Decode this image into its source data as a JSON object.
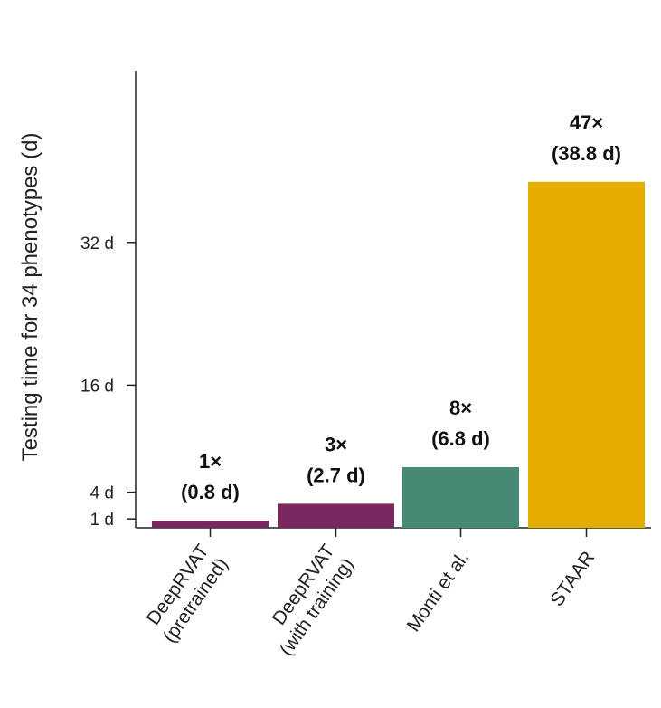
{
  "chart_data": {
    "type": "bar",
    "ylabel": "Testing time for 34 phenotypes (d)",
    "ylim": [
      0,
      45
    ],
    "yticks": [
      {
        "value": 1,
        "label": "1 d"
      },
      {
        "value": 4,
        "label": "4 d"
      },
      {
        "value": 16,
        "label": "16 d"
      },
      {
        "value": 32,
        "label": "32 d"
      }
    ],
    "categories": [
      {
        "lines": [
          "DeepRVAT",
          "(pretrained)"
        ]
      },
      {
        "lines": [
          "DeepRVAT",
          "(with training)"
        ]
      },
      {
        "lines": [
          "Monti et al."
        ]
      },
      {
        "lines": [
          "STAAR"
        ]
      }
    ],
    "values": [
      0.8,
      2.7,
      6.8,
      38.8
    ],
    "data_labels": [
      {
        "multiplier": "1×",
        "days": "(0.8 d)"
      },
      {
        "multiplier": "3×",
        "days": "(2.7 d)"
      },
      {
        "multiplier": "8×",
        "days": "(6.8 d)"
      },
      {
        "multiplier": "47×",
        "days": "(38.8 d)"
      }
    ],
    "colors": [
      "#7a2860",
      "#7a2860",
      "#458a74",
      "#e4ad00"
    ]
  }
}
